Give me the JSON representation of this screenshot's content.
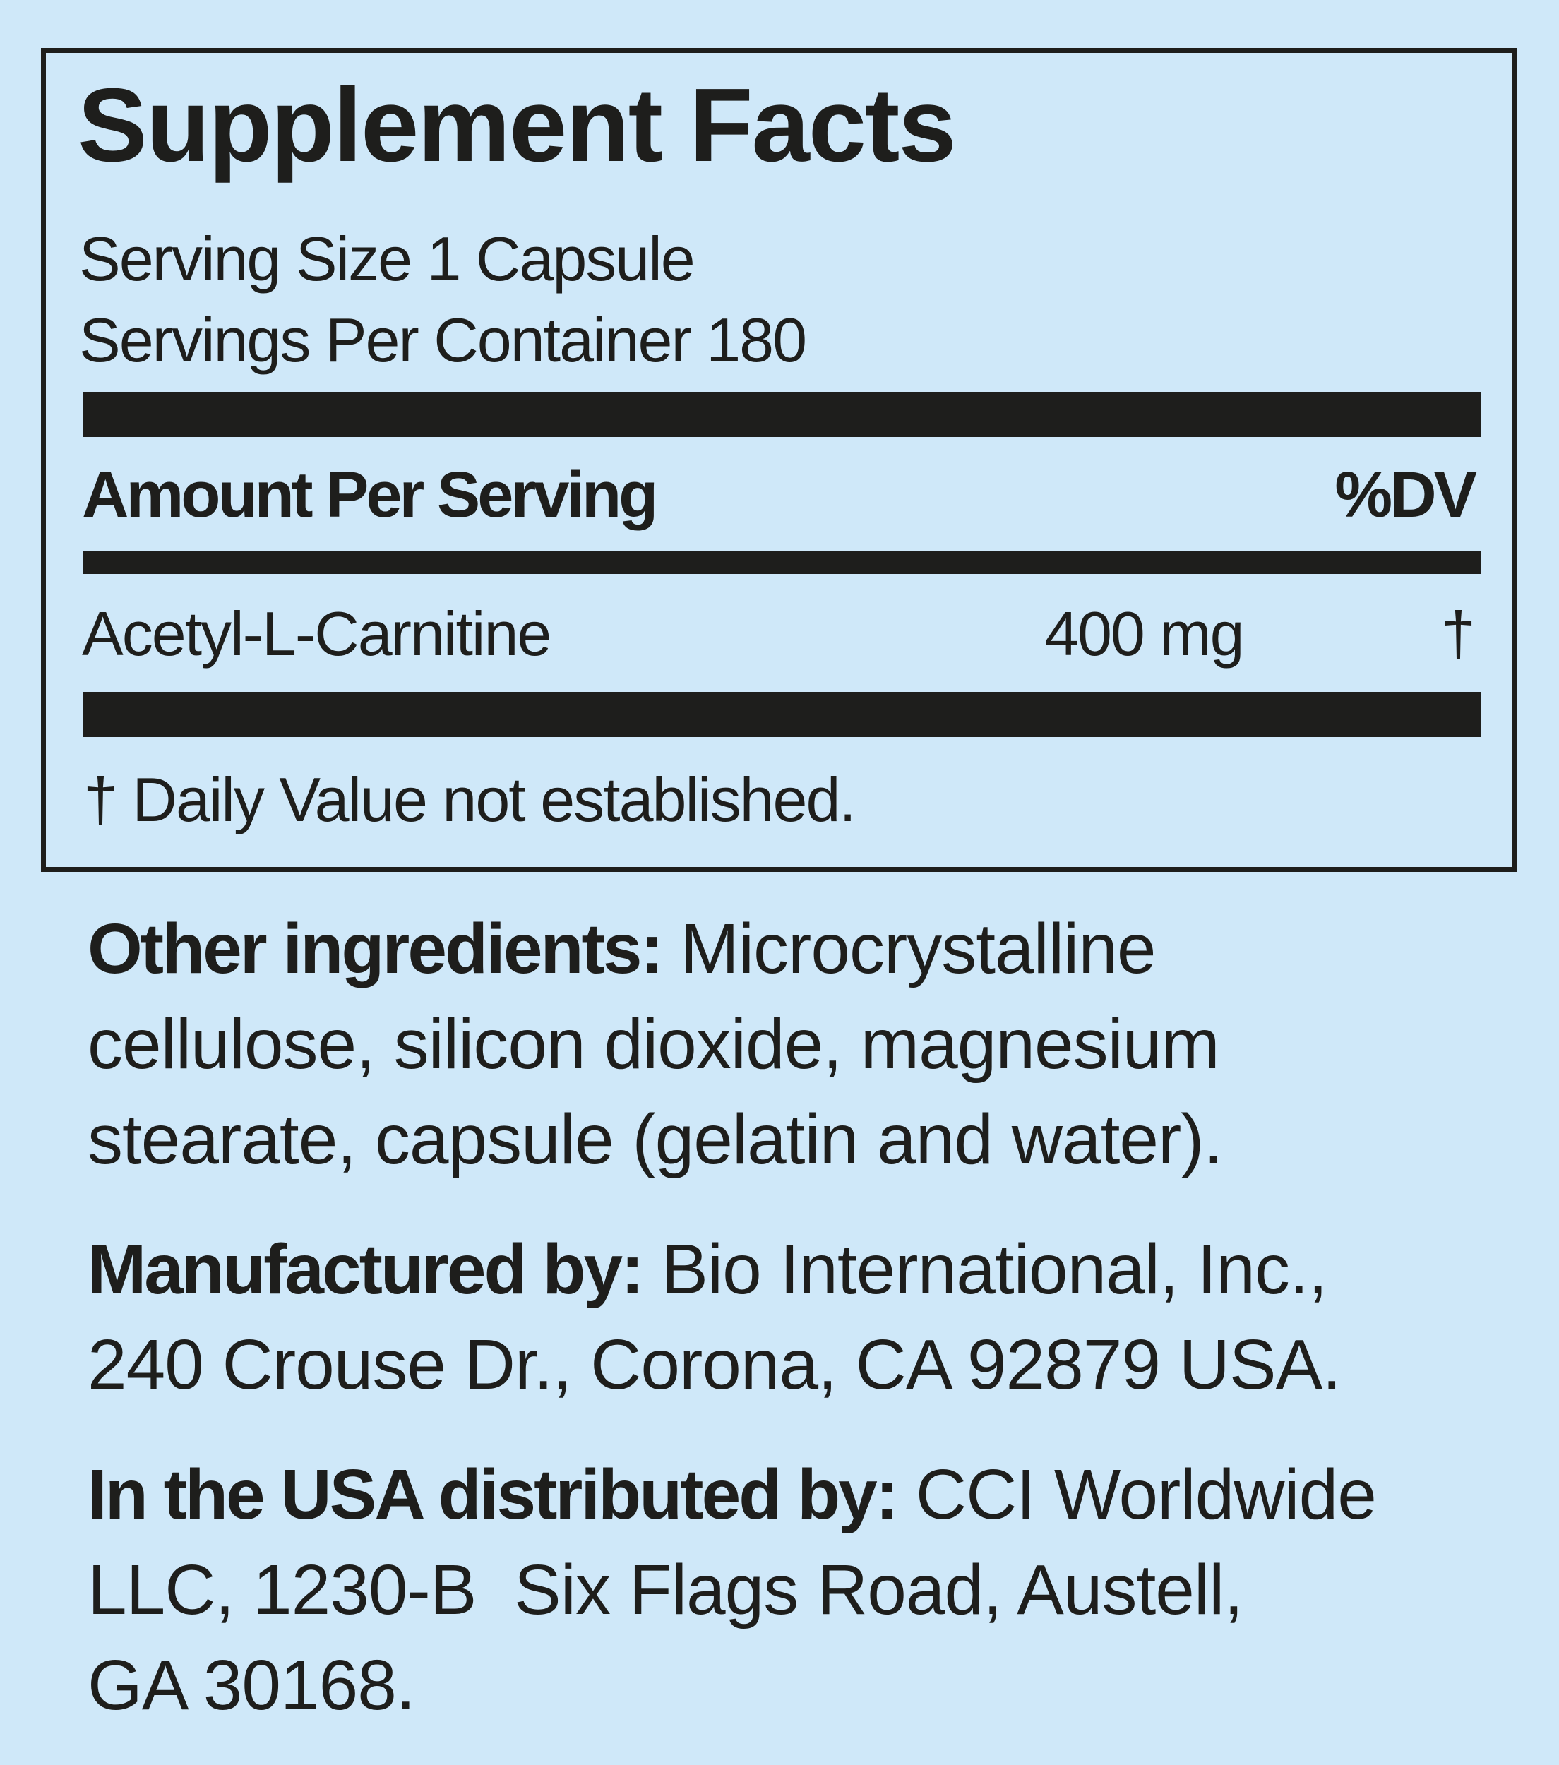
{
  "colors": {
    "background": "#cfe8f9",
    "text": "#1e1e1c"
  },
  "facts": {
    "title": "Supplement Facts",
    "serving_size": "Serving Size 1 Capsule",
    "servings_per_container": "Servings Per Container 180",
    "amount_header": "Amount Per Serving",
    "dv_header": "%DV",
    "ingredients": [
      {
        "name": "Acetyl-L-Carnitine",
        "amount": "400 mg",
        "dv": "†"
      }
    ],
    "footnote": "† Daily Value not established."
  },
  "other_ingredients": {
    "label": "Other ingredients:",
    "lines": [
      " Microcrystalline",
      "cellulose, silicon dioxide, magnesium",
      "stearate, capsule (gelatin and water)."
    ]
  },
  "manufacturer": {
    "label": "Manufactured by:",
    "lines": [
      " Bio International, Inc.,",
      "240 Crouse Dr., Corona, CA 92879 USA."
    ]
  },
  "distributor": {
    "label": "In the USA distributed by:",
    "lines": [
      " CCI Worldwide",
      "LLC, 1230-B  Six Flags Road, Austell,",
      "GA 30168."
    ]
  }
}
